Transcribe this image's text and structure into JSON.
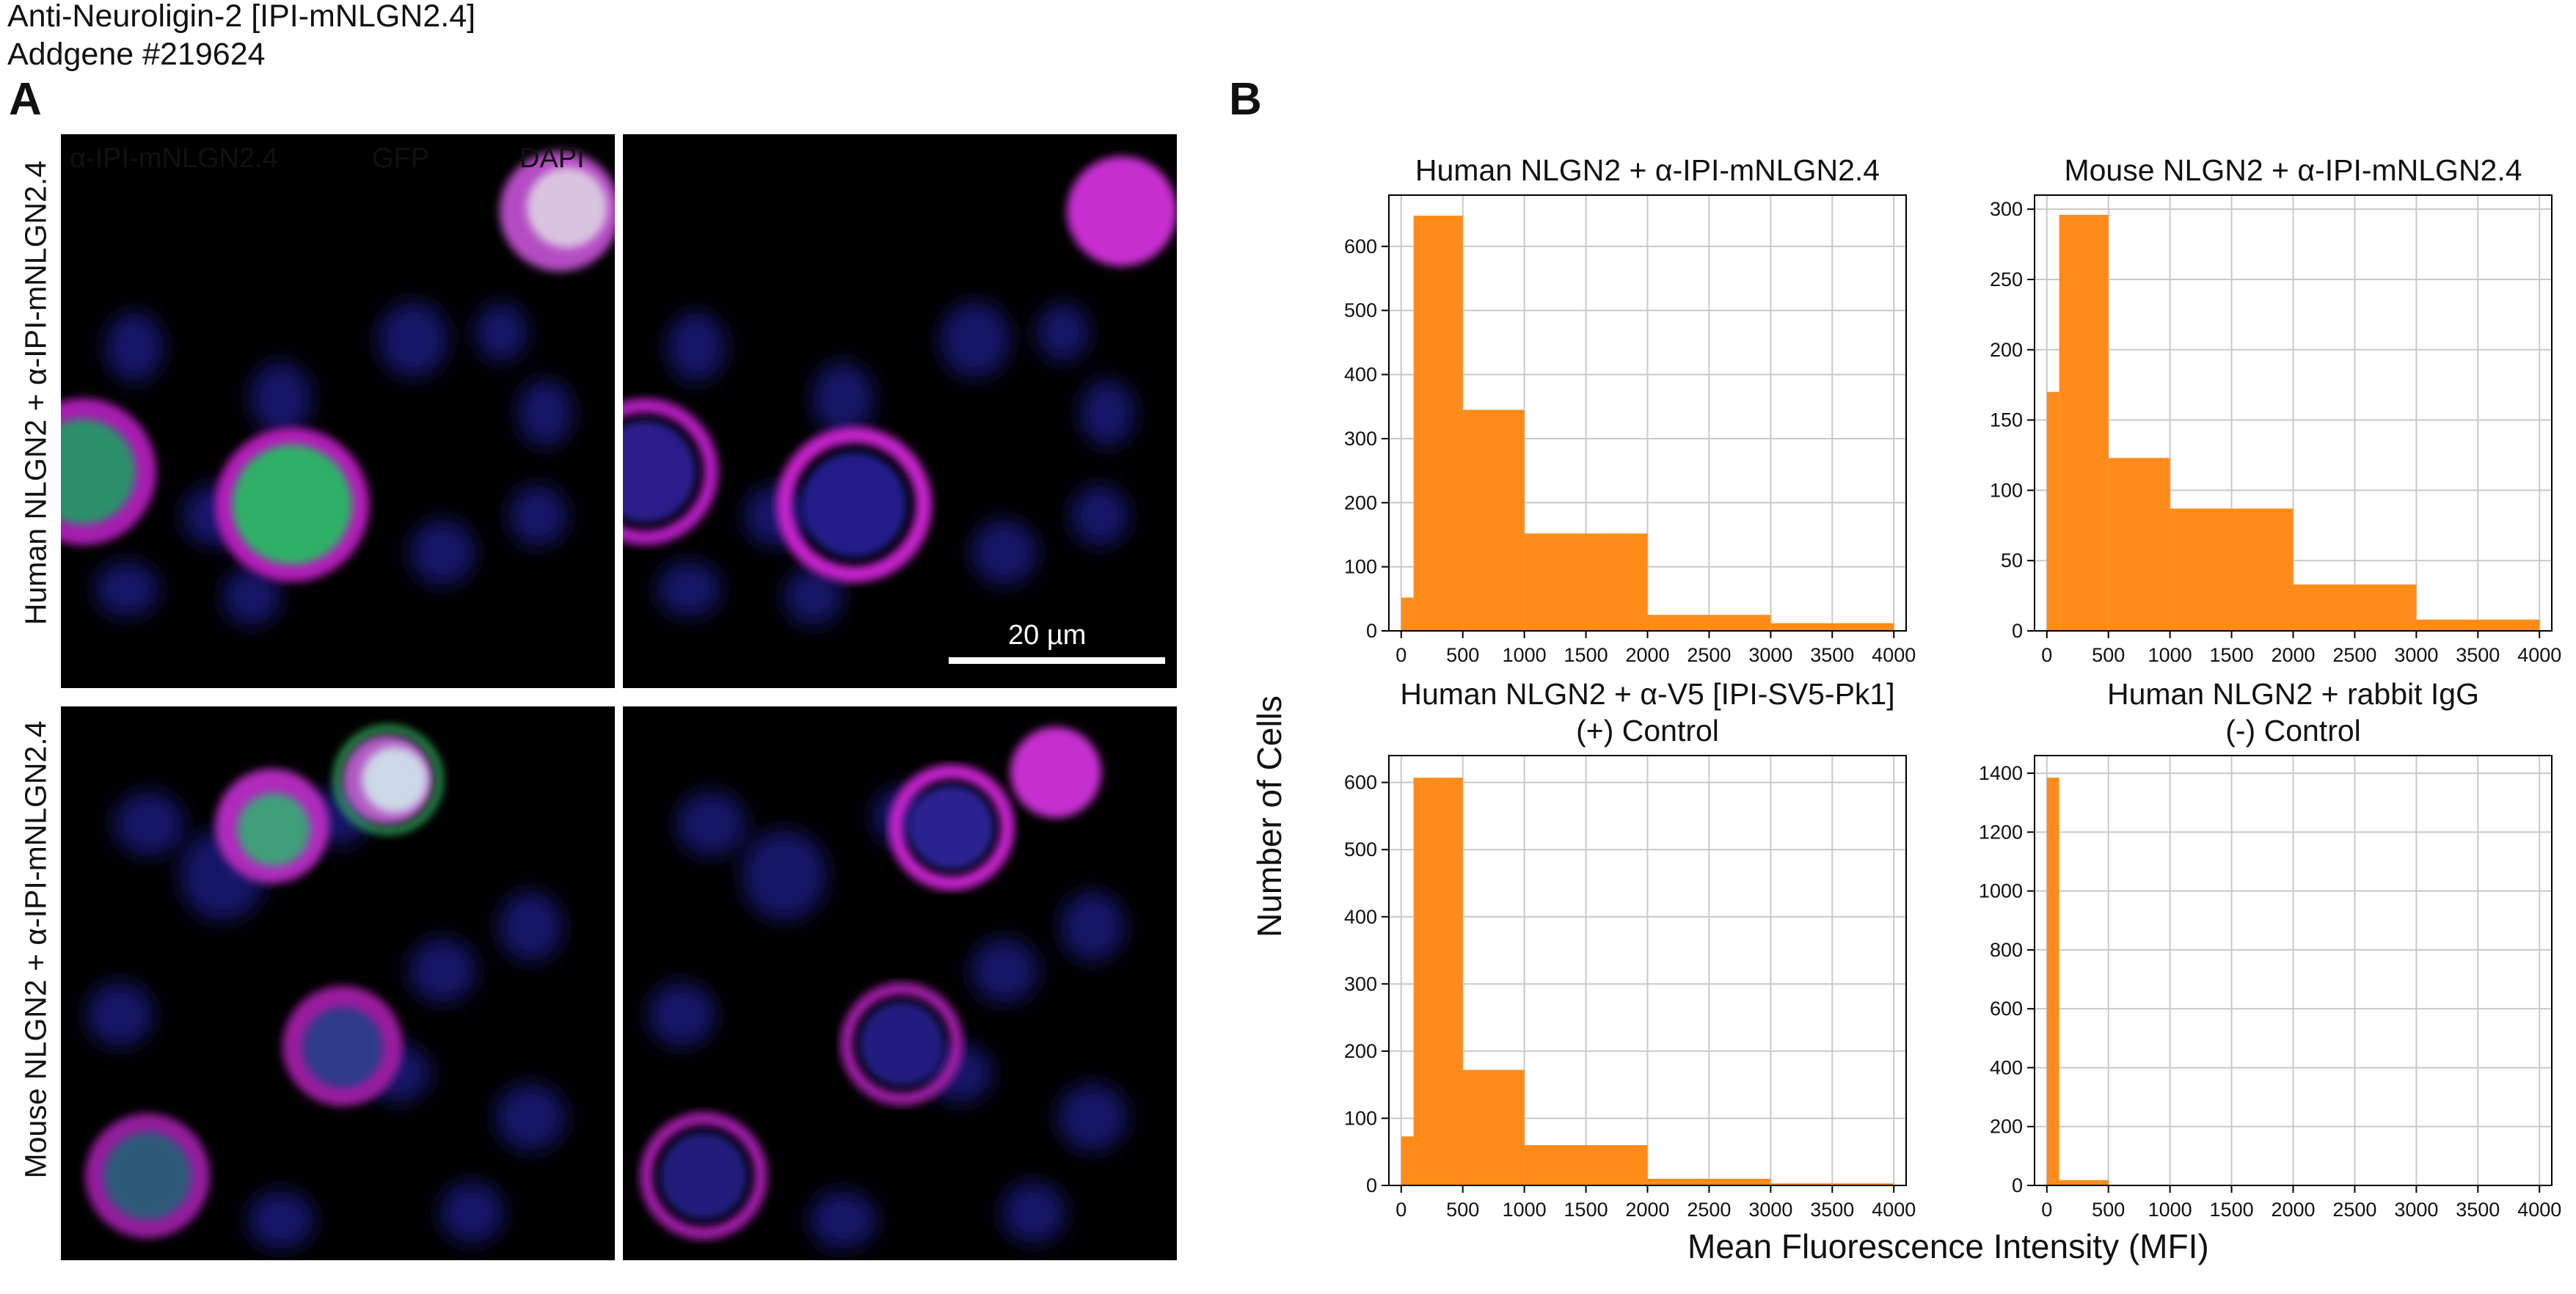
{
  "header": {
    "line1": "Anti-Neuroligin-2 [IPI-mNLGN2.4]",
    "line2": "Addgene #219624"
  },
  "panels": {
    "a": "A",
    "b": "B"
  },
  "micrograph": {
    "row_labels": [
      "Human NLGN2 + α-IPI-mNLGN2.4",
      "Mouse NLGN2 + α-IPI-mNLGN2.4"
    ],
    "channels": [
      {
        "label": "α-IPI-mNLGN2.4",
        "color": "#e21fe6"
      },
      {
        "label": "GFP",
        "color": "#22d66a"
      },
      {
        "label": "DAPI",
        "color": "#1d2be0"
      }
    ],
    "scale_bar": "20 µm"
  },
  "shared_axes": {
    "ylabel": "Number of Cells",
    "xlabel": "Mean Fluorescence Intensity (MFI)"
  },
  "colors": {
    "bar": "#ff8c1a",
    "grid": "#c8c8c8"
  },
  "chart_data": [
    {
      "type": "bar",
      "title": [
        "Human NLGN2 + α-IPI-mNLGN2.4"
      ],
      "bins": [
        [
          0,
          100
        ],
        [
          100,
          500
        ],
        [
          500,
          1000
        ],
        [
          1000,
          2000
        ],
        [
          2000,
          3000
        ],
        [
          3000,
          4000
        ]
      ],
      "values": [
        52,
        648,
        345,
        152,
        25,
        12
      ],
      "xlim": [
        -100,
        4100
      ],
      "ylim": [
        0,
        680
      ],
      "xticks": [
        0,
        500,
        1000,
        1500,
        2000,
        2500,
        3000,
        3500,
        4000
      ],
      "yticks": [
        0,
        100,
        200,
        300,
        400,
        500,
        600
      ]
    },
    {
      "type": "bar",
      "title": [
        "Mouse NLGN2 + α-IPI-mNLGN2.4"
      ],
      "bins": [
        [
          0,
          100
        ],
        [
          100,
          500
        ],
        [
          500,
          1000
        ],
        [
          1000,
          2000
        ],
        [
          2000,
          3000
        ],
        [
          3000,
          4000
        ]
      ],
      "values": [
        170,
        296,
        123,
        87,
        33,
        8
      ],
      "xlim": [
        -100,
        4100
      ],
      "ylim": [
        0,
        310
      ],
      "xticks": [
        0,
        500,
        1000,
        1500,
        2000,
        2500,
        3000,
        3500,
        4000
      ],
      "yticks": [
        0,
        50,
        100,
        150,
        200,
        250,
        300
      ]
    },
    {
      "type": "bar",
      "title": [
        "Human NLGN2 + α-V5 [IPI-SV5-Pk1]",
        "(+) Control"
      ],
      "bins": [
        [
          0,
          100
        ],
        [
          100,
          500
        ],
        [
          500,
          1000
        ],
        [
          1000,
          2000
        ],
        [
          2000,
          3000
        ],
        [
          3000,
          4000
        ]
      ],
      "values": [
        73,
        607,
        172,
        60,
        10,
        3
      ],
      "xlim": [
        -100,
        4100
      ],
      "ylim": [
        0,
        640
      ],
      "xticks": [
        0,
        500,
        1000,
        1500,
        2000,
        2500,
        3000,
        3500,
        4000
      ],
      "yticks": [
        0,
        100,
        200,
        300,
        400,
        500,
        600
      ]
    },
    {
      "type": "bar",
      "title": [
        "Human NLGN2 + rabbit IgG",
        "(-) Control"
      ],
      "bins": [
        [
          0,
          100
        ],
        [
          100,
          500
        ]
      ],
      "values": [
        1385,
        18
      ],
      "xlim": [
        -100,
        4100
      ],
      "ylim": [
        0,
        1460
      ],
      "xticks": [
        0,
        500,
        1000,
        1500,
        2000,
        2500,
        3000,
        3500,
        4000
      ],
      "yticks": [
        0,
        200,
        400,
        600,
        800,
        1000,
        1200,
        1400
      ]
    }
  ]
}
